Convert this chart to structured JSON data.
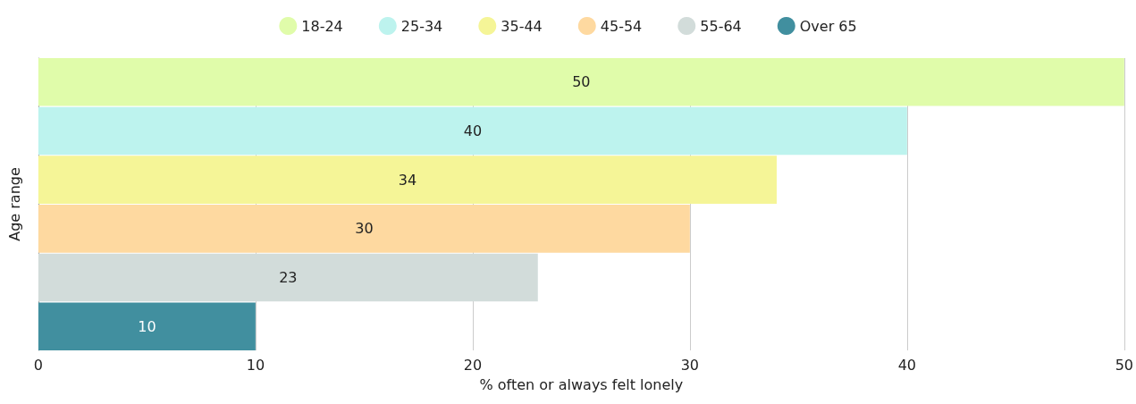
{
  "chart_data": {
    "type": "bar",
    "orientation": "horizontal",
    "xlabel": "% often or always felt lonely",
    "ylabel": "Age range",
    "categories": [
      null
    ],
    "series": [
      {
        "name": "18-24",
        "color": "#e0fcaa",
        "values": [
          50
        ]
      },
      {
        "name": "25-34",
        "color": "#bdf3ee",
        "values": [
          40
        ]
      },
      {
        "name": "35-44",
        "color": "#f5f597",
        "values": [
          34
        ]
      },
      {
        "name": "45-54",
        "color": "#fed9a0",
        "values": [
          30
        ]
      },
      {
        "name": "55-64",
        "color": "#d2dcda",
        "values": [
          23
        ]
      },
      {
        "name": "Over 65",
        "color": "#418f9f",
        "values": [
          10
        ]
      }
    ],
    "xlim": [
      0,
      50
    ],
    "xticks": [
      0,
      10,
      20,
      30,
      40,
      50
    ],
    "grid": "x",
    "legend": "top",
    "data_labels": true
  }
}
